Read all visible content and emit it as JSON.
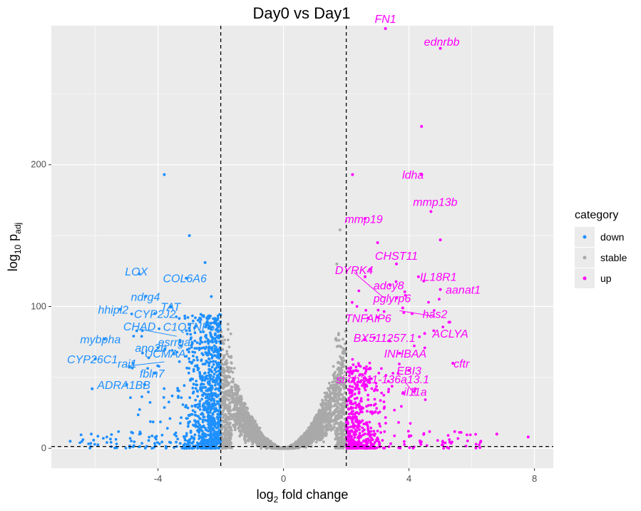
{
  "chart_data": {
    "type": "scatter",
    "title": "Day0 vs Day1",
    "xlabel_main": "log",
    "xlabel_sub": "2",
    "xlabel_tail": " fold change",
    "ylabel_main": "log",
    "ylabel_sub": "10",
    "ylabel_tail": " p",
    "ylabel_subtail": "adj",
    "xlim": [
      -7.4,
      8.6
    ],
    "ylim": [
      -14,
      298
    ],
    "x_ticks": [
      -4,
      0,
      4,
      8
    ],
    "y_ticks": [
      0,
      100,
      200
    ],
    "x_tick_labels": [
      "-4",
      "0",
      "4",
      "8"
    ],
    "y_tick_labels": [
      "0",
      "100",
      "200"
    ],
    "vlines": [
      -2,
      2
    ],
    "hline": 1.3,
    "grid": true,
    "legend": {
      "title": "category",
      "position": "right",
      "entries": [
        {
          "key": "down",
          "label": "down",
          "color": "#1e90ff"
        },
        {
          "key": "stable",
          "label": "stable",
          "color": "#a9a9a9"
        },
        {
          "key": "up",
          "label": "up",
          "color": "#ff00ff"
        }
      ]
    },
    "colors": {
      "down": "#1e90ff",
      "stable": "#a9a9a9",
      "up": "#ff00ff"
    },
    "labeled_points": [
      {
        "gene": "FN1",
        "x": 3.25,
        "y": 296,
        "category": "up"
      },
      {
        "gene": "ednrbb",
        "x": 5.0,
        "y": 282,
        "category": "up"
      },
      {
        "gene": "ldha",
        "x": 4.4,
        "y": 193,
        "category": "up"
      },
      {
        "gene": "mmp13b",
        "x": 4.7,
        "y": 167,
        "category": "up"
      },
      {
        "gene": "mmp19",
        "x": 2.6,
        "y": 162,
        "category": "up"
      },
      {
        "gene": "CHST11",
        "x": 3.6,
        "y": 130,
        "category": "up"
      },
      {
        "gene": "DYRK4",
        "x": 2.75,
        "y": 126,
        "category": "up"
      },
      {
        "gene": "IL18R1",
        "x": 4.3,
        "y": 121,
        "category": "up"
      },
      {
        "gene": "adcy8",
        "x": 3.4,
        "y": 115,
        "category": "up"
      },
      {
        "gene": "aanat1",
        "x": 5.0,
        "y": 112,
        "category": "up"
      },
      {
        "gene": "pglyrp6",
        "x": 3.6,
        "y": 106,
        "category": "up"
      },
      {
        "gene": "has2",
        "x": 4.1,
        "y": 95,
        "category": "up"
      },
      {
        "gene": "TNFAIP6",
        "x": 2.7,
        "y": 92,
        "category": "up"
      },
      {
        "gene": "ACLYA",
        "x": 4.5,
        "y": 81,
        "category": "up"
      },
      {
        "gene": "BX511257.1",
        "x": 2.9,
        "y": 78,
        "category": "up"
      },
      {
        "gene": "INHBAA",
        "x": 3.7,
        "y": 67,
        "category": "up"
      },
      {
        "gene": "cftr",
        "x": 5.4,
        "y": 60,
        "category": "up"
      },
      {
        "gene": "EBI3",
        "x": 4.0,
        "y": 55,
        "category": "up"
      },
      {
        "gene": "si:ch211-136a13.1",
        "x": 2.8,
        "y": 49,
        "category": "up"
      },
      {
        "gene": "il11a",
        "x": 4.2,
        "y": 42,
        "category": "up"
      },
      {
        "gene": "LOX",
        "x": -4.6,
        "y": 123,
        "category": "down"
      },
      {
        "gene": "COL6A6",
        "x": -3.1,
        "y": 120,
        "category": "down"
      },
      {
        "gene": "ndrg4",
        "x": -4.4,
        "y": 107,
        "category": "down"
      },
      {
        "gene": "TAT",
        "x": -3.6,
        "y": 100,
        "category": "down"
      },
      {
        "gene": "hhipl2",
        "x": -5.2,
        "y": 98,
        "category": "down"
      },
      {
        "gene": "CYP2J2",
        "x": -4.1,
        "y": 95,
        "category": "down"
      },
      {
        "gene": "C1QTNF6A",
        "x": -2.8,
        "y": 86,
        "category": "down"
      },
      {
        "gene": "CHAD",
        "x": -4.5,
        "y": 83,
        "category": "down"
      },
      {
        "gene": "mybpha",
        "x": -5.7,
        "y": 77,
        "category": "down"
      },
      {
        "gene": "esrrga",
        "x": -3.3,
        "y": 75,
        "category": "down"
      },
      {
        "gene": "ano2b",
        "x": -4.0,
        "y": 71,
        "category": "down"
      },
      {
        "gene": "UCMAA",
        "x": -3.5,
        "y": 67,
        "category": "down"
      },
      {
        "gene": "CYP26C1",
        "x": -6.0,
        "y": 63,
        "category": "down"
      },
      {
        "gene": "rai1",
        "x": -4.8,
        "y": 60,
        "category": "down"
      },
      {
        "gene": "fbln7",
        "x": -4.1,
        "y": 53,
        "category": "down"
      },
      {
        "gene": "ADRA1BB",
        "x": -5.0,
        "y": 45,
        "category": "down"
      }
    ],
    "extra_points": [
      {
        "x": -3.8,
        "y": 193,
        "category": "down"
      },
      {
        "x": -3.0,
        "y": 150,
        "category": "down"
      },
      {
        "x": -2.5,
        "y": 131,
        "category": "down"
      },
      {
        "x": -2.3,
        "y": 107,
        "category": "down"
      },
      {
        "x": -6.1,
        "y": 42,
        "category": "down"
      },
      {
        "x": -6.8,
        "y": 5,
        "category": "down"
      },
      {
        "x": 4.4,
        "y": 227,
        "category": "up"
      },
      {
        "x": 2.2,
        "y": 193,
        "category": "up"
      },
      {
        "x": 5.0,
        "y": 147,
        "category": "up"
      },
      {
        "x": 3.0,
        "y": 145,
        "category": "up"
      },
      {
        "x": 2.6,
        "y": 121,
        "category": "up"
      },
      {
        "x": 3.8,
        "y": 99,
        "category": "up"
      },
      {
        "x": 5.3,
        "y": 89,
        "category": "up"
      },
      {
        "x": 6.8,
        "y": 10,
        "category": "up"
      },
      {
        "x": 7.8,
        "y": 8,
        "category": "up"
      },
      {
        "x": 1.8,
        "y": 154,
        "category": "stable"
      },
      {
        "x": 1.7,
        "y": 130,
        "category": "stable"
      }
    ]
  }
}
